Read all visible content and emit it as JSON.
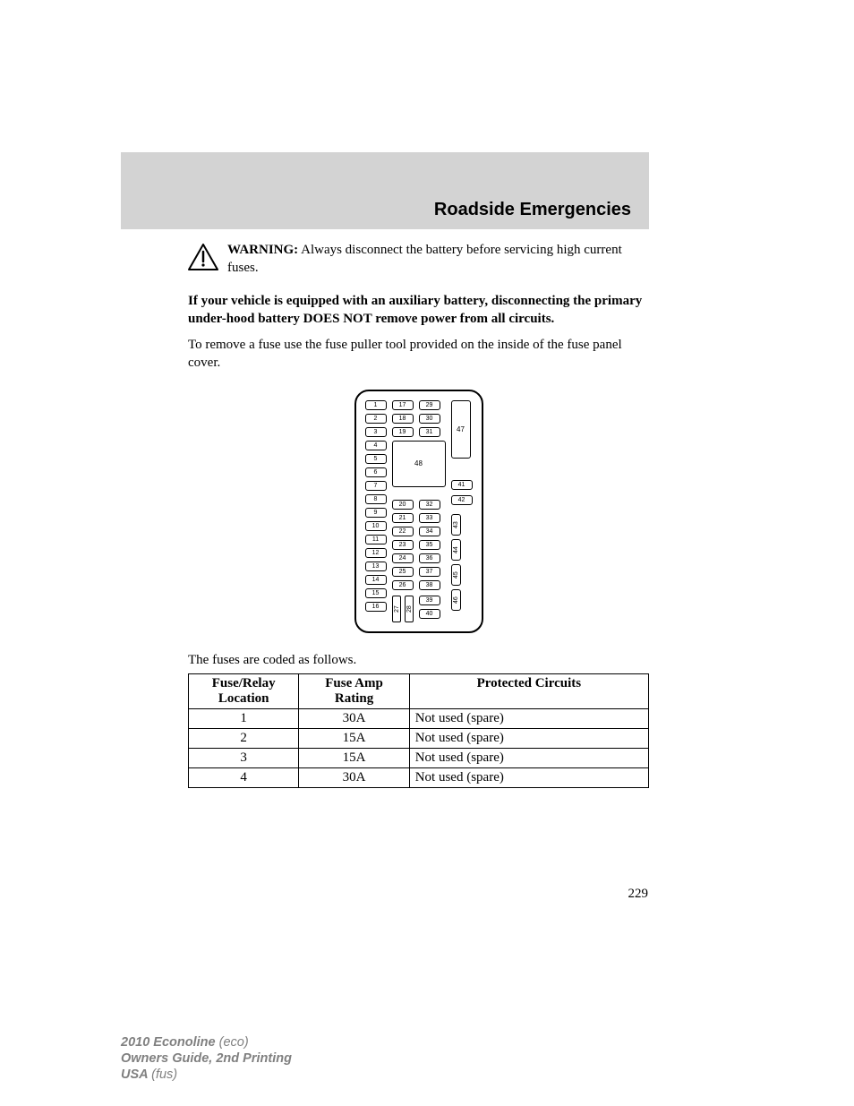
{
  "header": {
    "title": "Roadside Emergencies"
  },
  "warning": {
    "label": "WARNING:",
    "text": "Always disconnect the battery before servicing high current fuses."
  },
  "aux_note": "If your vehicle is equipped with an auxiliary battery, disconnecting the primary under-hood battery DOES NOT remove power from all circuits.",
  "body": "To remove a fuse use the fuse puller tool provided on the inside of the fuse panel cover.",
  "diagram": {
    "left_col": [
      "1",
      "2",
      "3",
      "4",
      "5",
      "6",
      "7",
      "8",
      "9",
      "10",
      "11",
      "12",
      "13",
      "14",
      "15",
      "16"
    ],
    "top_a": [
      "17",
      "18",
      "19"
    ],
    "top_b": [
      "29",
      "30",
      "31"
    ],
    "big": "48",
    "tall_47": "47",
    "right_41": "41",
    "right_42": "42",
    "mid_a": [
      "20",
      "21",
      "22",
      "23",
      "24",
      "25",
      "26"
    ],
    "mid_b": [
      "32",
      "33",
      "34",
      "35",
      "36",
      "37",
      "38"
    ],
    "bot_v": [
      "27",
      "28"
    ],
    "bot_r": [
      "39",
      "40"
    ],
    "v_right": [
      "43",
      "44",
      "45",
      "46"
    ]
  },
  "table": {
    "caption": "The fuses are coded as follows.",
    "headers": {
      "c0a": "Fuse/Relay",
      "c0b": "Location",
      "c1a": "Fuse Amp",
      "c1b": "Rating",
      "c2": "Protected Circuits"
    },
    "rows": [
      {
        "loc": "1",
        "amp": "30A",
        "circ": "Not used (spare)"
      },
      {
        "loc": "2",
        "amp": "15A",
        "circ": "Not used (spare)"
      },
      {
        "loc": "3",
        "amp": "15A",
        "circ": "Not used (spare)"
      },
      {
        "loc": "4",
        "amp": "30A",
        "circ": "Not used (spare)"
      }
    ]
  },
  "page_number": "229",
  "footer": {
    "l1a": "2010 Econoline ",
    "l1b": "(eco)",
    "l2": "Owners Guide, 2nd Printing",
    "l3a": "USA ",
    "l3b": "(fus)"
  },
  "colors": {
    "band": "#d3d3d3",
    "footer_gray": "#808080"
  }
}
